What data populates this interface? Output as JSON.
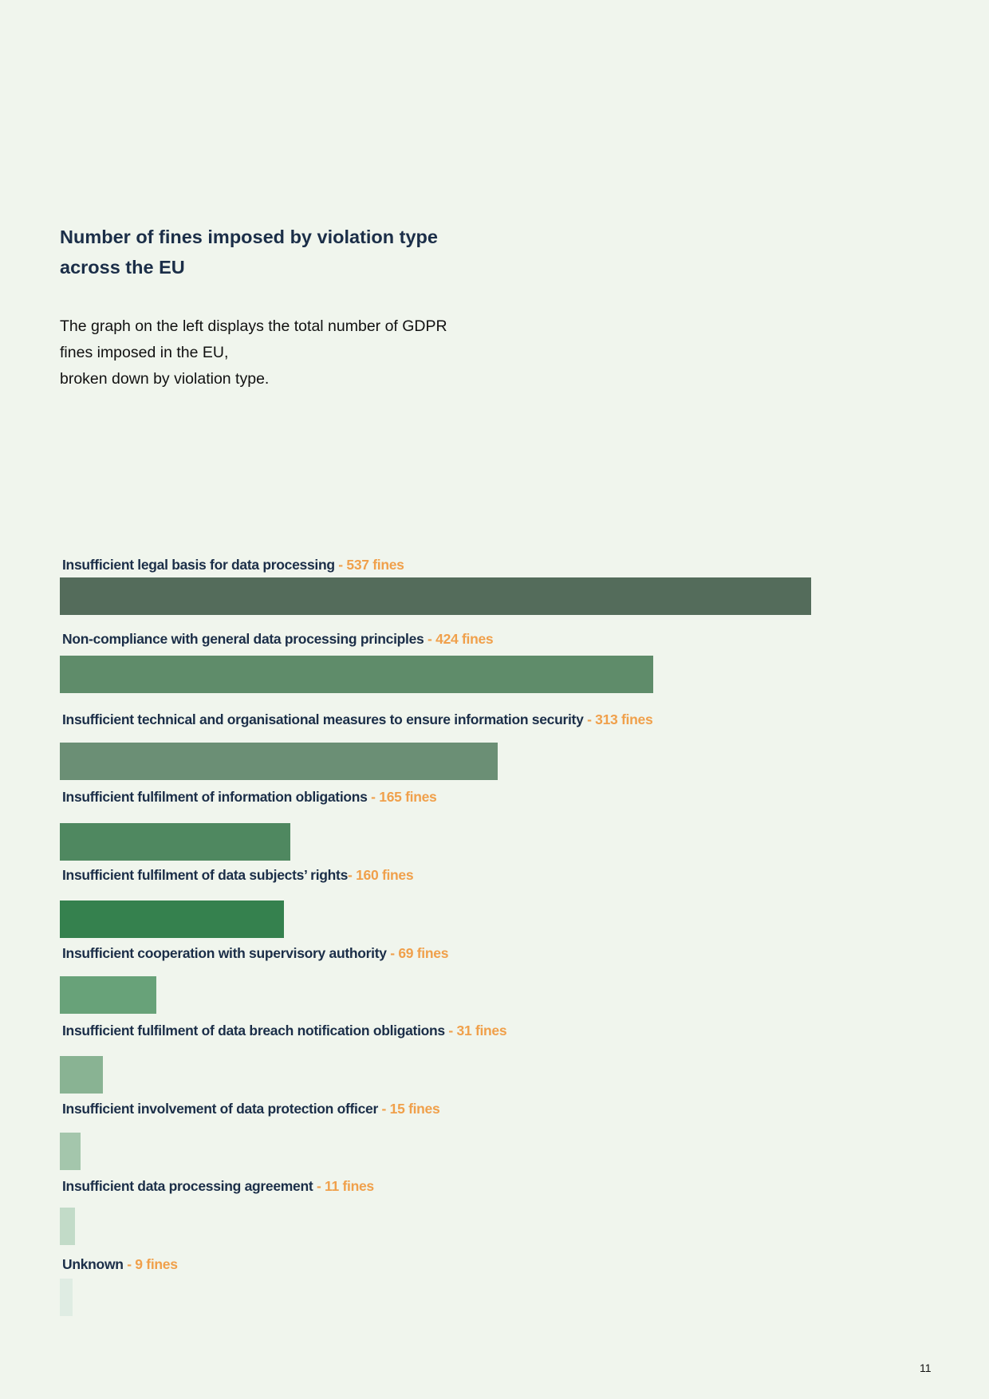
{
  "title_lines": [
    "Number of fines imposed by violation type",
    "across the EU"
  ],
  "description_lines": [
    "The graph on the left displays the total  number of GDPR",
    "fines imposed in the EU,",
    "broken down by violation type."
  ],
  "page_number": "11",
  "chart_data": {
    "type": "bar",
    "orientation": "horizontal",
    "title": "Number of fines imposed by violation type across the EU",
    "xlabel": "",
    "ylabel": "",
    "value_suffix": " fines",
    "categories": [
      "Insufficient legal basis for data processing",
      "Non-compliance with general data processing principles",
      "Insufficient technical and organisational measures to ensure information security",
      "Insufficient fulfilment of information obligations",
      "Insufficient fulfilment of data subjects’ rights",
      "Insufficient cooperation with supervisory authority",
      "Insufficient fulfilment of data breach notification obligations",
      "Insufficient involvement of data protection officer",
      "Insufficient data processing agreement",
      "Unknown"
    ],
    "values": [
      537,
      424,
      313,
      165,
      160,
      69,
      31,
      15,
      11,
      9
    ],
    "value_labels": [
      " - 537 fines",
      " - 424 fines",
      " - 313 fines",
      " - 165 fines",
      "- 160 fines",
      " - 69 fines",
      " - 31 fines",
      " - 15 fines",
      " - 11 fines",
      " - 9 fines"
    ],
    "colors": [
      "#546c5b",
      "#5f8c6a",
      "#6b8f75",
      "#4f8860",
      "#35814e",
      "#68a279",
      "#89b393",
      "#a4c6ac",
      "#c2dbc8",
      "#dfece3"
    ],
    "xlim": [
      0,
      537
    ],
    "grid": false,
    "label_color": "#1b2e48",
    "value_color": "#f0a04b"
  }
}
